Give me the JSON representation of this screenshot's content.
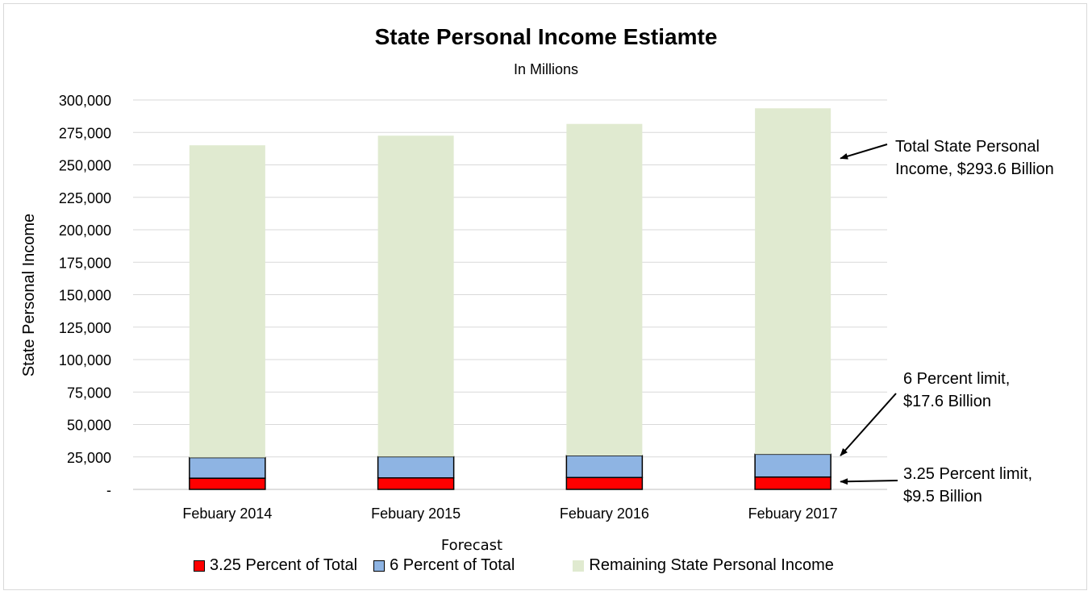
{
  "chart_data": {
    "type": "bar",
    "stacked": true,
    "title": "State Personal Income Estiamte",
    "subtitle": "In Millions",
    "xlabel": "Forecast",
    "ylabel": "State Personal Income",
    "categories": [
      "Febuary 2014",
      "Febuary 2015",
      "Febuary 2016",
      "Febuary 2017"
    ],
    "series": [
      {
        "name": "3.25 Percent of Total",
        "color": "#ff0000",
        "values": [
          8600,
          8850,
          9150,
          9500
        ]
      },
      {
        "name": "6 Percent of Total",
        "color": "#8eb4e3",
        "values": [
          15900,
          16350,
          16900,
          17600
        ]
      },
      {
        "name": "Remaining State Personal Income",
        "color": "#e0ead0",
        "values": [
          240600,
          247300,
          255500,
          266500
        ]
      }
    ],
    "ylim": [
      0,
      300000
    ],
    "yticks": [
      0,
      25000,
      50000,
      75000,
      100000,
      125000,
      150000,
      175000,
      200000,
      225000,
      250000,
      275000,
      300000
    ],
    "ytick_labels": [
      "-",
      "25,000",
      "50,000",
      "75,000",
      "100,000",
      "125,000",
      "150,000",
      "175,000",
      "200,000",
      "225,000",
      "250,000",
      "275,000",
      "300,000"
    ],
    "grid": true,
    "legend_position": "bottom",
    "annotations": [
      {
        "lines": [
          "Total State Personal",
          "Income, $293.6 Billion"
        ],
        "target_category": 3,
        "target_value": 255000
      },
      {
        "lines": [
          "6 Percent limit,",
          "$17.6 Billion"
        ],
        "target_category": 3,
        "target_value": 26000
      },
      {
        "lines": [
          "3.25 Percent limit,",
          "$9.5 Billion"
        ],
        "target_category": 3,
        "target_value": 6000
      }
    ]
  }
}
